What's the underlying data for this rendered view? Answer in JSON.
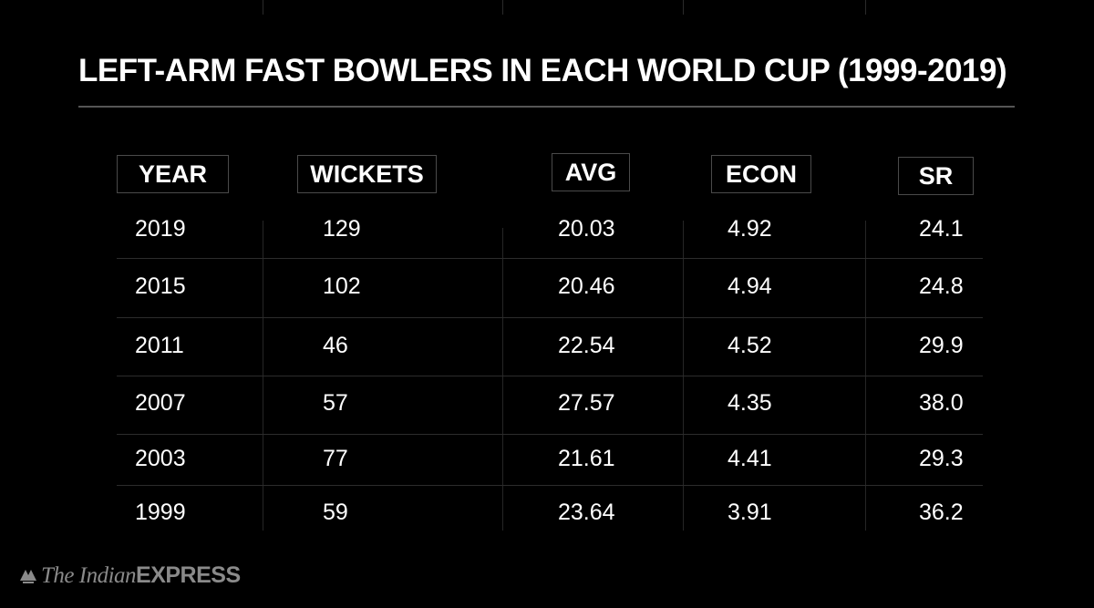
{
  "title": "LEFT-ARM FAST BOWLERS IN EACH WORLD CUP (1999-2019)",
  "logo": {
    "part1": "The Indian",
    "part2": "EXPRESS",
    "icon": "indian-express-mark-icon"
  },
  "colors": {
    "background": "#000000",
    "text": "#ffffff",
    "grid": "#2c2c2c",
    "logo": "#8a8a8a"
  },
  "chart_data": {
    "type": "table",
    "title": "LEFT-ARM FAST BOWLERS IN EACH WORLD CUP (1999-2019)",
    "columns": [
      "YEAR",
      "WICKETS",
      "AVG",
      "ECON",
      "SR"
    ],
    "rows": [
      [
        "2019",
        "129",
        "20.03",
        "4.92",
        "24.1"
      ],
      [
        "2015",
        "102",
        "20.46",
        "4.94",
        "24.8"
      ],
      [
        "2011",
        "46",
        "22.54",
        "4.52",
        "29.9"
      ],
      [
        "2007",
        "57",
        "27.57",
        "4.35",
        "38.0"
      ],
      [
        "2003",
        "77",
        "21.61",
        "4.41",
        "29.3"
      ],
      [
        "1999",
        "59",
        "23.64",
        "3.91",
        "36.2"
      ]
    ]
  }
}
